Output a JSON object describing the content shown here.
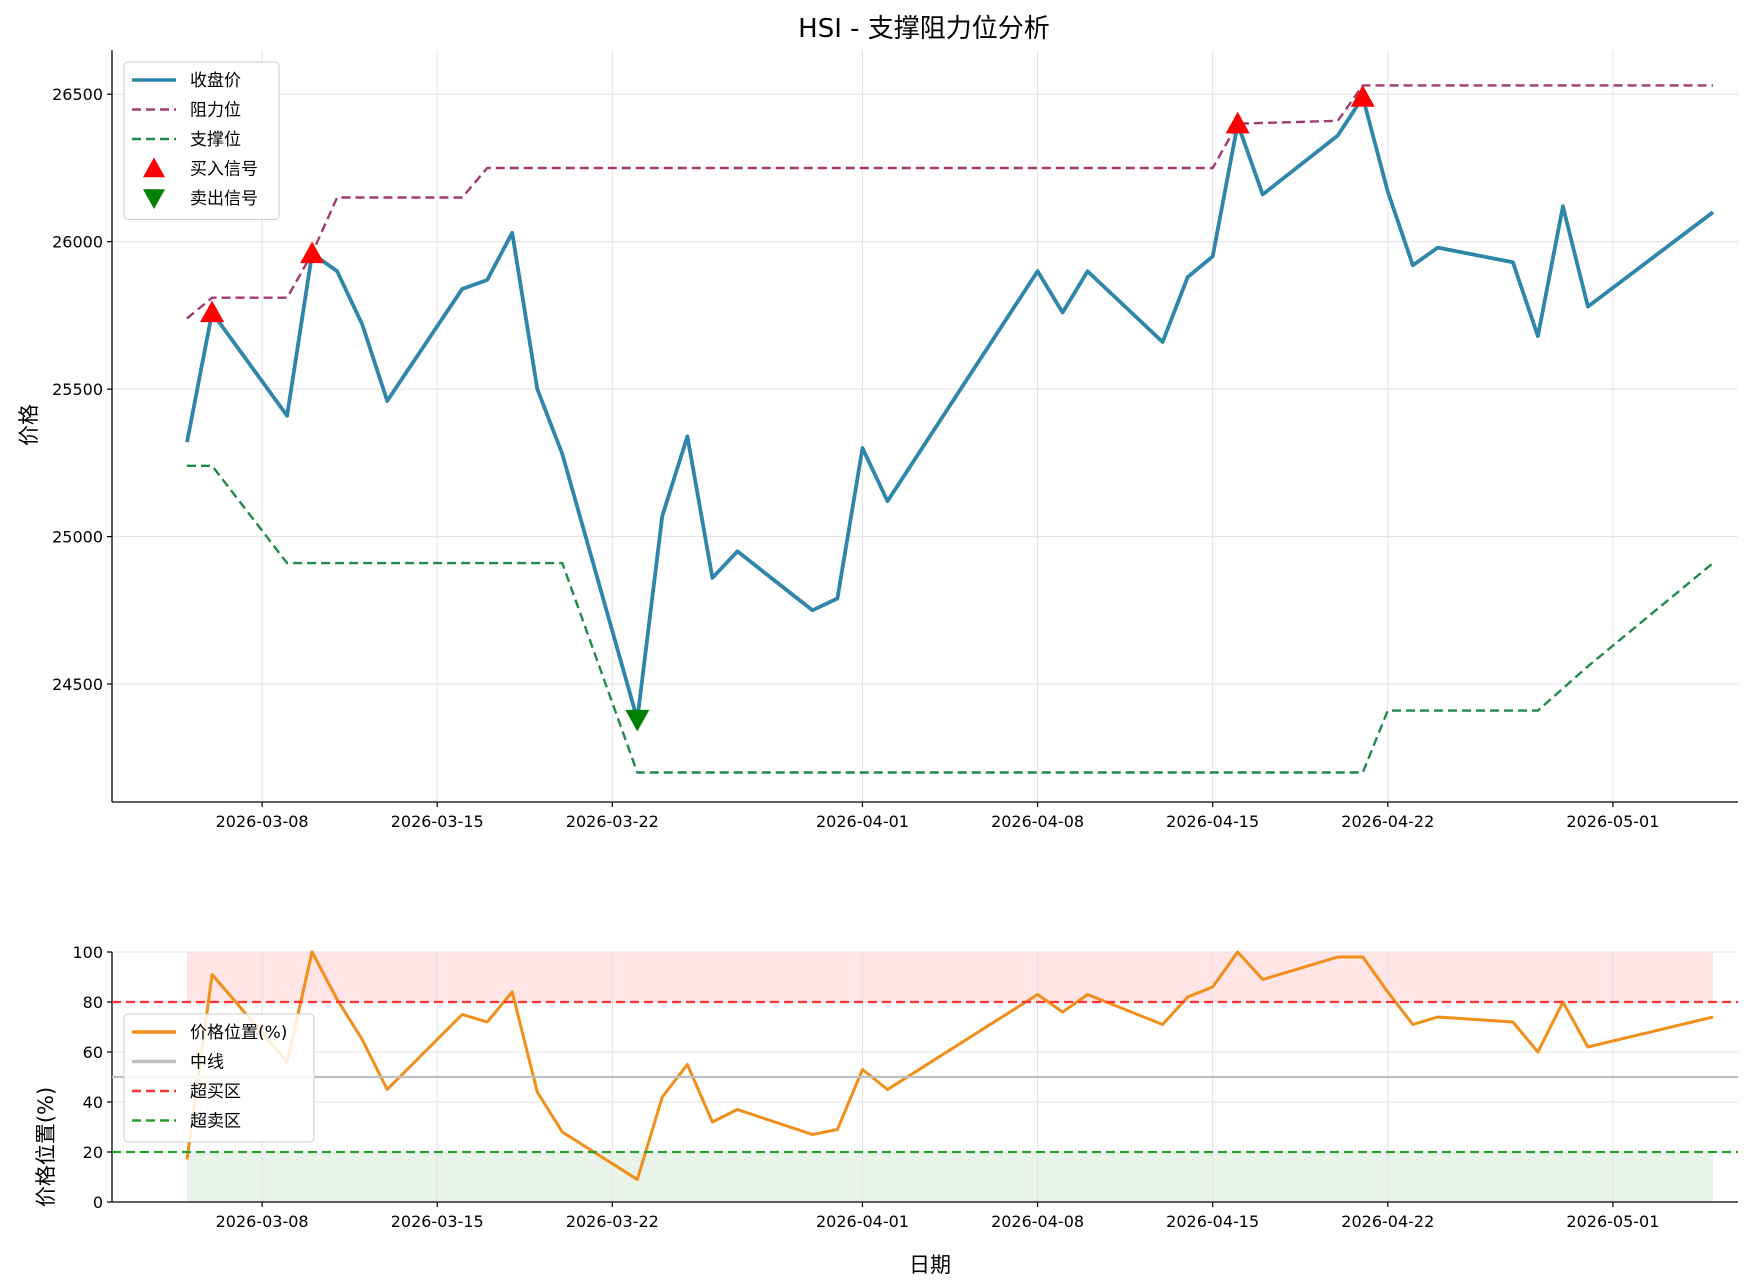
{
  "chart_data": [
    {
      "type": "line",
      "title": "HSI - 支撑阻力位分析",
      "xlabel": "",
      "ylabel": "价格",
      "x_axis_type": "date",
      "xlim": [
        "2026-03-02",
        "2026-05-06"
      ],
      "ylim": [
        24100,
        26650
      ],
      "xticks": [
        "2026-03-08",
        "2026-03-15",
        "2026-03-22",
        "2026-04-01",
        "2026-04-08",
        "2026-04-15",
        "2026-04-22",
        "2026-05-01"
      ],
      "yticks": [
        24500,
        25000,
        25500,
        26000,
        26500
      ],
      "grid": true,
      "legend_position": "upper-left",
      "series": [
        {
          "name": "收盘价",
          "style": "solid",
          "color": "#2e86ab",
          "x": [
            "2026-03-05",
            "2026-03-06",
            "2026-03-09",
            "2026-03-10",
            "2026-03-11",
            "2026-03-12",
            "2026-03-13",
            "2026-03-16",
            "2026-03-17",
            "2026-03-18",
            "2026-03-19",
            "2026-03-20",
            "2026-03-23",
            "2026-03-24",
            "2026-03-25",
            "2026-03-26",
            "2026-03-27",
            "2026-03-30",
            "2026-03-31",
            "2026-04-01",
            "2026-04-02",
            "2026-04-08",
            "2026-04-09",
            "2026-04-10",
            "2026-04-13",
            "2026-04-14",
            "2026-04-15",
            "2026-04-16",
            "2026-04-17",
            "2026-04-20",
            "2026-04-21",
            "2026-04-22",
            "2026-04-23",
            "2026-04-24",
            "2026-04-27",
            "2026-04-28",
            "2026-04-29",
            "2026-04-30",
            "2026-05-05"
          ],
          "y": [
            25320,
            25760,
            25410,
            25960,
            25900,
            25720,
            25460,
            25840,
            25870,
            26030,
            25500,
            25280,
            24380,
            25070,
            25340,
            24860,
            24950,
            24750,
            24790,
            25300,
            25120,
            25900,
            25760,
            25900,
            25660,
            25880,
            25950,
            26400,
            26160,
            26360,
            26490,
            26170,
            25920,
            25980,
            25930,
            25680,
            26120,
            25780,
            26100
          ]
        },
        {
          "name": "阻力位",
          "style": "dashed",
          "color": "#a23b72",
          "x": [
            "2026-03-05",
            "2026-03-06",
            "2026-03-09",
            "2026-03-10",
            "2026-03-11",
            "2026-03-16",
            "2026-03-17",
            "2026-04-15",
            "2026-04-16",
            "2026-04-20",
            "2026-04-21",
            "2026-05-05"
          ],
          "y": [
            25740,
            25810,
            25810,
            25960,
            26150,
            26150,
            26250,
            26250,
            26400,
            26410,
            26530,
            26530
          ]
        },
        {
          "name": "支撑位",
          "style": "dashed",
          "color": "#1f8a4a",
          "x": [
            "2026-03-05",
            "2026-03-06",
            "2026-03-09",
            "2026-03-20",
            "2026-03-23",
            "2026-04-21",
            "2026-04-22",
            "2026-04-28",
            "2026-04-30",
            "2026-05-05"
          ],
          "y": [
            25240,
            25240,
            24910,
            24910,
            24200,
            24200,
            24410,
            24410,
            24560,
            24910
          ]
        }
      ],
      "markers": [
        {
          "name": "买入信号",
          "shape": "triangle-up",
          "color": "#ff0000",
          "x": [
            "2026-03-06",
            "2026-03-10",
            "2026-04-16",
            "2026-04-21"
          ],
          "y": [
            25760,
            25960,
            26400,
            26490
          ]
        },
        {
          "name": "卖出信号",
          "shape": "triangle-down",
          "color": "#008000",
          "x": [
            "2026-03-23"
          ],
          "y": [
            24380
          ]
        }
      ]
    },
    {
      "type": "line",
      "title": "",
      "xlabel": "日期",
      "ylabel": "价格位置(%)",
      "x_axis_type": "date",
      "xlim": [
        "2026-03-02",
        "2026-05-06"
      ],
      "ylim": [
        0,
        100
      ],
      "xticks": [
        "2026-03-08",
        "2026-03-15",
        "2026-03-22",
        "2026-04-01",
        "2026-04-08",
        "2026-04-15",
        "2026-04-22",
        "2026-05-01"
      ],
      "yticks": [
        0,
        20,
        40,
        60,
        80,
        100
      ],
      "grid": true,
      "legend_position": "middle-left",
      "bands": [
        {
          "from": 80,
          "to": 100,
          "color": "#ffdede"
        },
        {
          "from": 0,
          "to": 20,
          "color": "#e3f0e3"
        }
      ],
      "series": [
        {
          "name": "价格位置(%)",
          "style": "solid",
          "color": "#f28e1a",
          "x": [
            "2026-03-05",
            "2026-03-06",
            "2026-03-09",
            "2026-03-10",
            "2026-03-11",
            "2026-03-12",
            "2026-03-13",
            "2026-03-16",
            "2026-03-17",
            "2026-03-18",
            "2026-03-19",
            "2026-03-20",
            "2026-03-23",
            "2026-03-24",
            "2026-03-25",
            "2026-03-26",
            "2026-03-27",
            "2026-03-30",
            "2026-03-31",
            "2026-04-01",
            "2026-04-02",
            "2026-04-08",
            "2026-04-09",
            "2026-04-10",
            "2026-04-13",
            "2026-04-14",
            "2026-04-15",
            "2026-04-16",
            "2026-04-17",
            "2026-04-20",
            "2026-04-21",
            "2026-04-22",
            "2026-04-23",
            "2026-04-24",
            "2026-04-27",
            "2026-04-28",
            "2026-04-29",
            "2026-04-30",
            "2026-05-05"
          ],
          "y": [
            17,
            91,
            56,
            100,
            81,
            65,
            45,
            75,
            72,
            84,
            44,
            28,
            9,
            42,
            55,
            32,
            37,
            27,
            29,
            53,
            45,
            83,
            76,
            83,
            71,
            82,
            86,
            100,
            89,
            98,
            98,
            84,
            71,
            74,
            72,
            60,
            80,
            62,
            74
          ]
        },
        {
          "name": "中线",
          "style": "solid",
          "color": "#bfbfbf",
          "hline": 50
        },
        {
          "name": "超买区",
          "style": "dashed",
          "color": "#ff3333",
          "hline": 80
        },
        {
          "name": "超卖区",
          "style": "dashed",
          "color": "#2ca02c",
          "hline": 20
        }
      ]
    }
  ]
}
